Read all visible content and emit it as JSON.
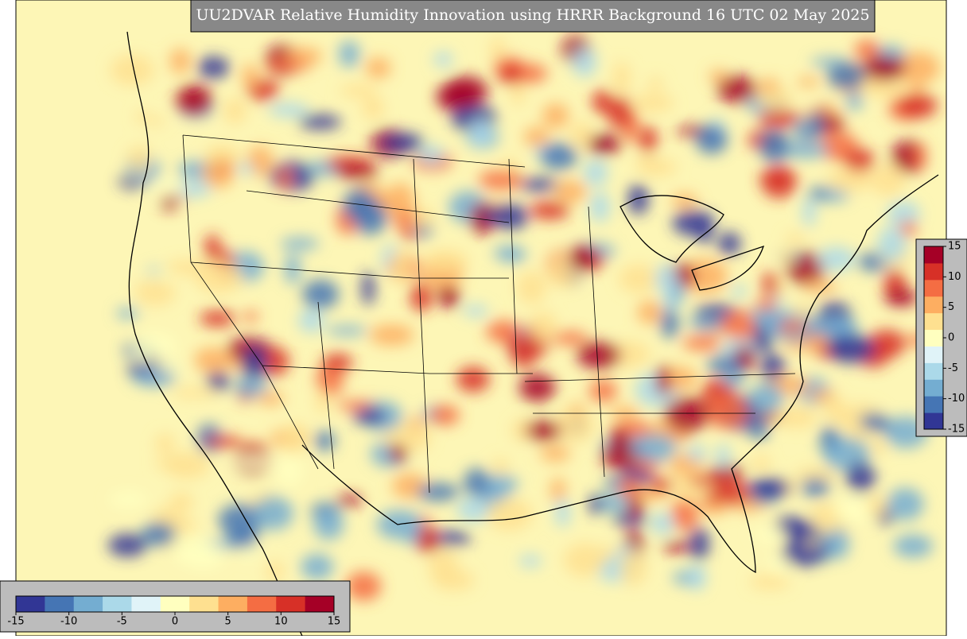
{
  "title": "UU2DVAR Relative Humidity Innovation using HRRR Background 16 UTC 02 May 2025",
  "colorbar_horizontal": {
    "lim": [
      -15,
      15
    ],
    "ticks": [
      -15,
      -10,
      -5,
      0,
      5,
      10,
      15
    ],
    "colors": [
      "#313695",
      "#4575b4",
      "#74add1",
      "#abd9e9",
      "#e0f3f8",
      "#ffffbf",
      "#fee090",
      "#fdae61",
      "#f46d43",
      "#d73027",
      "#a50026"
    ]
  },
  "colorbar_vertical": {
    "lim": [
      -15,
      15
    ],
    "ticks": [
      15,
      10,
      5,
      0,
      -5,
      -10,
      -15
    ],
    "colors": [
      "#313695",
      "#4575b4",
      "#74add1",
      "#abd9e9",
      "#e0f3f8",
      "#ffffbf",
      "#fee090",
      "#fdae61",
      "#f46d43",
      "#d73027",
      "#a50026"
    ]
  }
}
